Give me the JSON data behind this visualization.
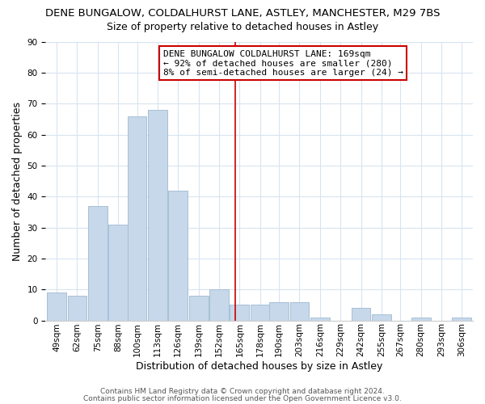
{
  "title": "DENE BUNGALOW, COLDALHURST LANE, ASTLEY, MANCHESTER, M29 7BS",
  "subtitle": "Size of property relative to detached houses in Astley",
  "xlabel": "Distribution of detached houses by size in Astley",
  "ylabel": "Number of detached properties",
  "bin_labels": [
    "49sqm",
    "62sqm",
    "75sqm",
    "88sqm",
    "100sqm",
    "113sqm",
    "126sqm",
    "139sqm",
    "152sqm",
    "165sqm",
    "178sqm",
    "190sqm",
    "203sqm",
    "216sqm",
    "229sqm",
    "242sqm",
    "255sqm",
    "267sqm",
    "280sqm",
    "293sqm",
    "306sqm"
  ],
  "bin_edges": [
    49,
    62,
    75,
    88,
    100,
    113,
    126,
    139,
    152,
    165,
    178,
    190,
    203,
    216,
    229,
    242,
    255,
    267,
    280,
    293,
    306
  ],
  "bin_width": 13,
  "bar_heights": [
    9,
    8,
    37,
    31,
    66,
    68,
    42,
    8,
    10,
    5,
    5,
    6,
    6,
    1,
    0,
    4,
    2,
    0,
    1,
    0,
    1
  ],
  "bar_color": "#c6d8ea",
  "bar_edgecolor": "#a8c0d6",
  "vline_x": 169,
  "vline_color": "#cc0000",
  "ylim": [
    0,
    90
  ],
  "yticks": [
    0,
    10,
    20,
    30,
    40,
    50,
    60,
    70,
    80,
    90
  ],
  "annotation_title": "DENE BUNGALOW COLDALHURST LANE: 169sqm",
  "annotation_line1": "← 92% of detached houses are smaller (280)",
  "annotation_line2": "8% of semi-detached houses are larger (24) →",
  "footer1": "Contains HM Land Registry data © Crown copyright and database right 2024.",
  "footer2": "Contains public sector information licensed under the Open Government Licence v3.0.",
  "background_color": "#ffffff",
  "grid_color": "#d8e4f0",
  "title_fontsize": 9.5,
  "subtitle_fontsize": 9,
  "axis_label_fontsize": 9,
  "tick_fontsize": 7.5,
  "annotation_fontsize": 8,
  "footer_fontsize": 6.5
}
